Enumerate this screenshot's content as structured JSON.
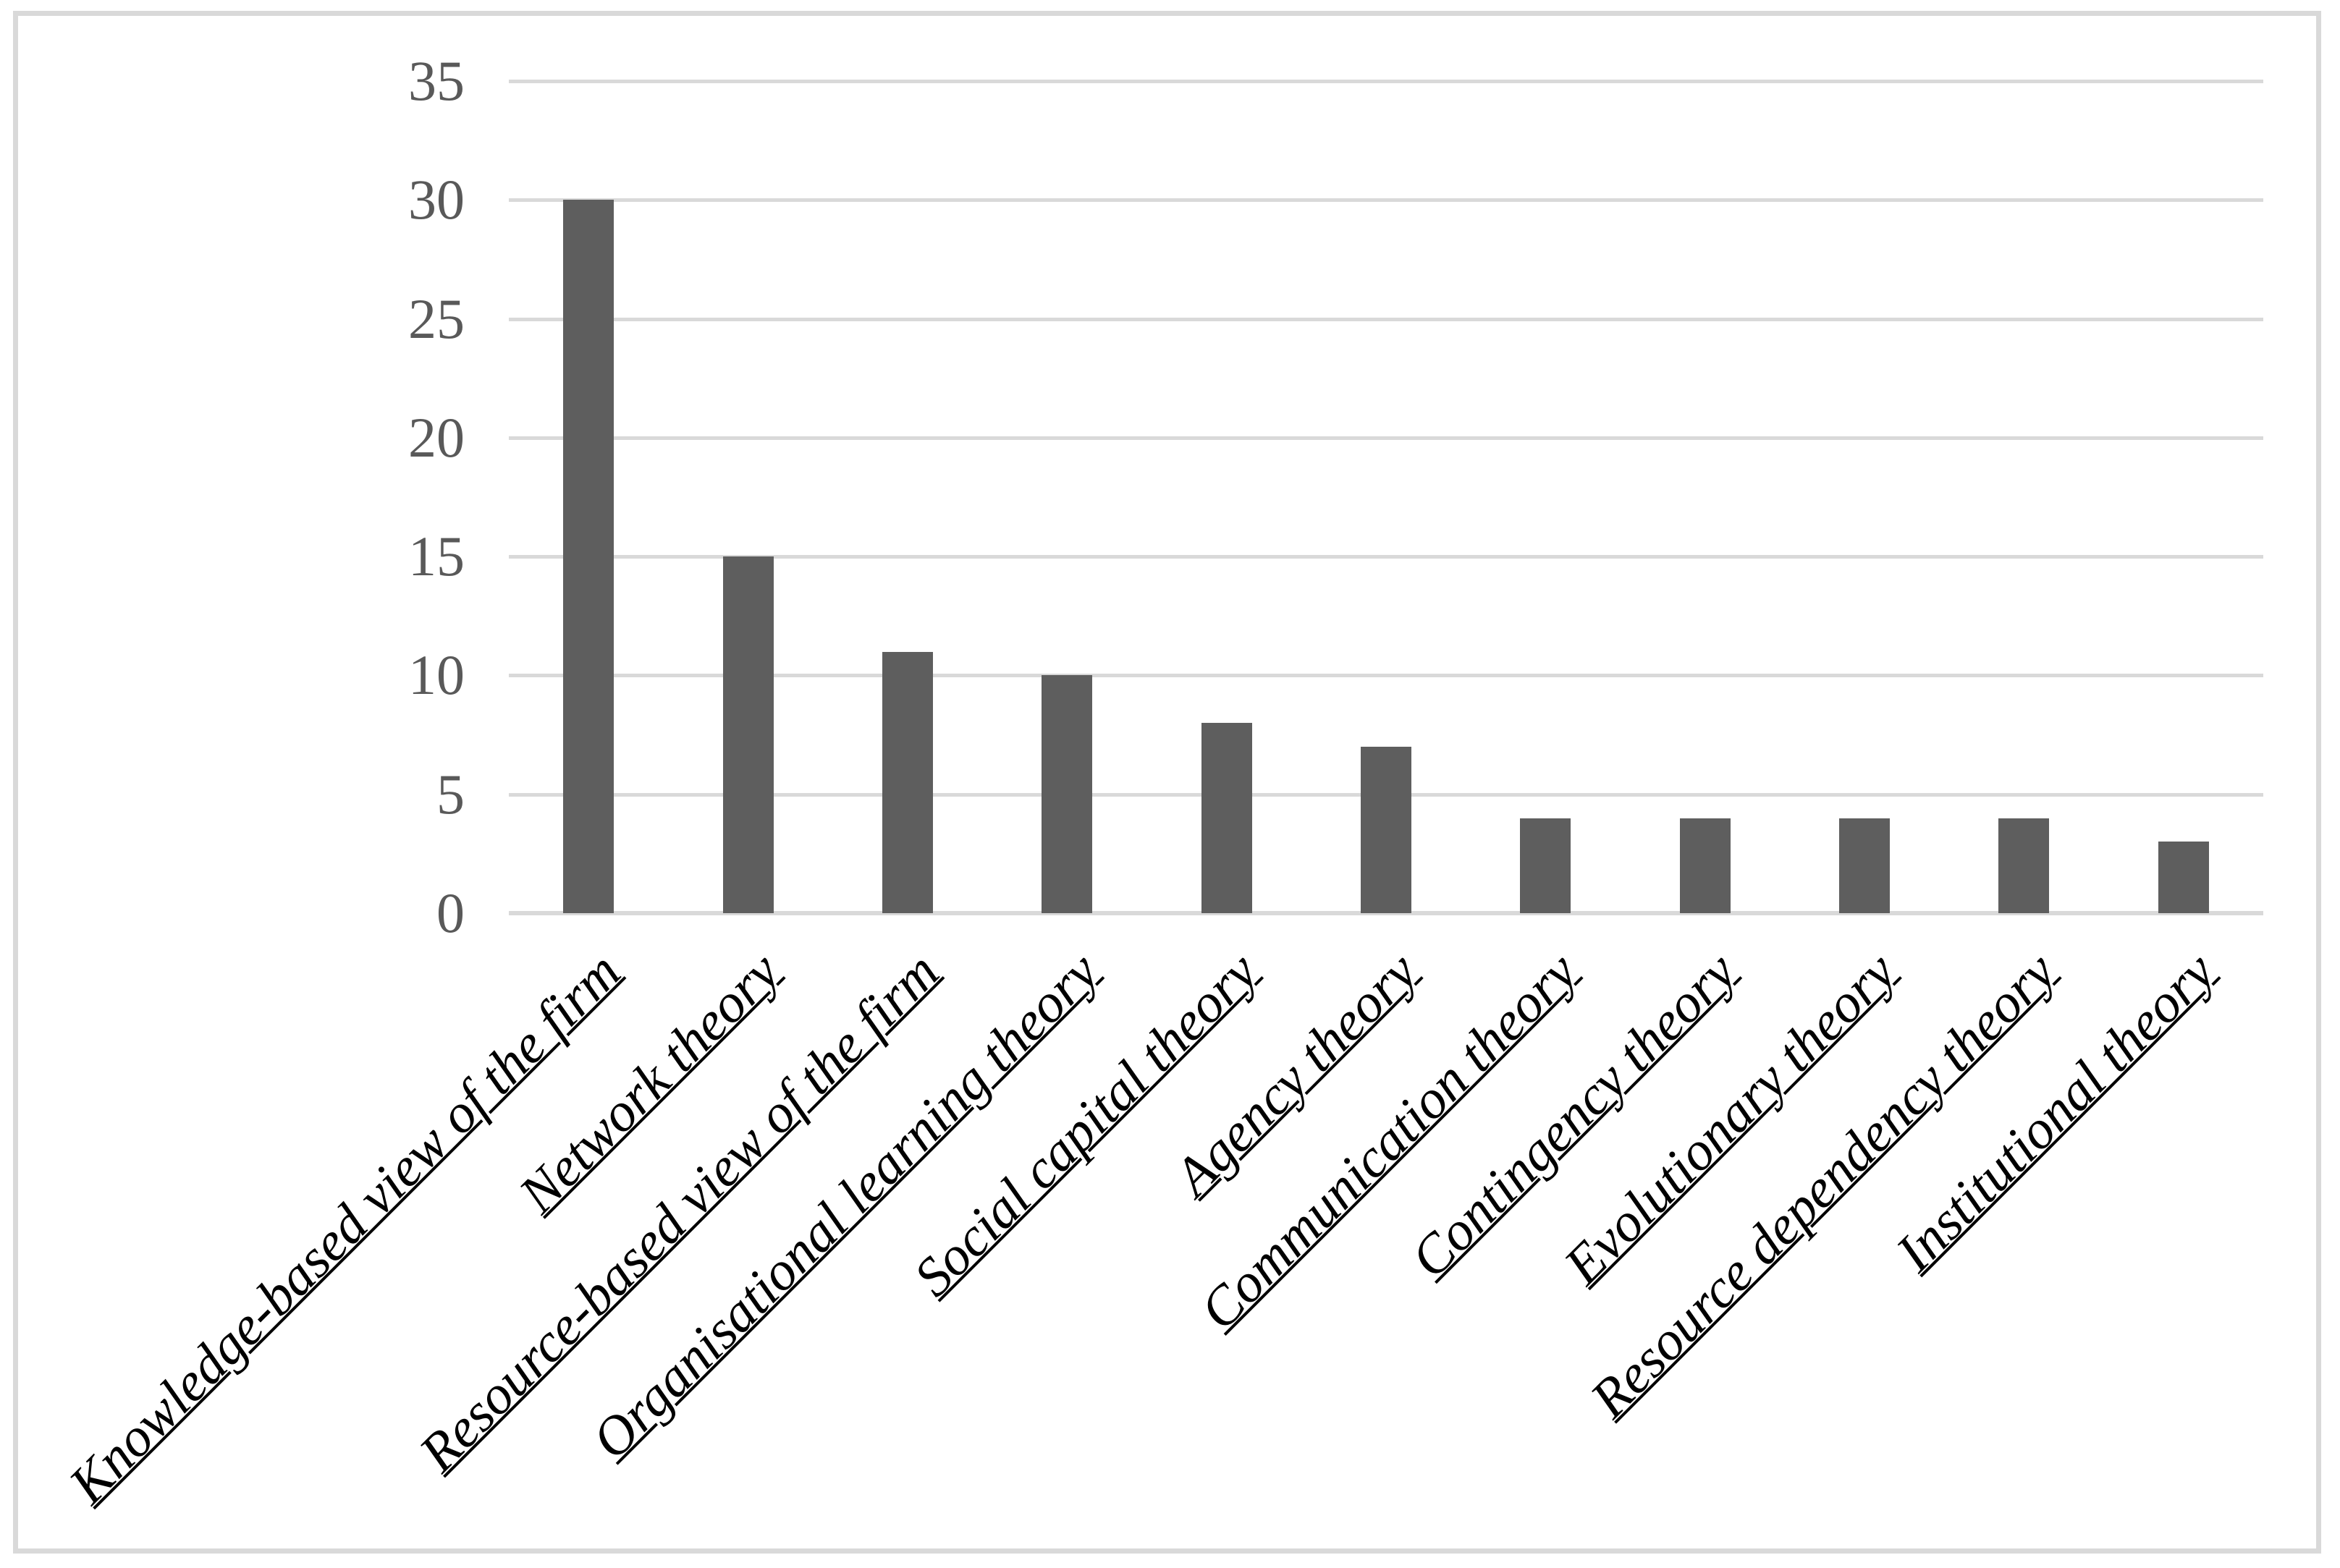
{
  "figure": {
    "background": "#FFFFFF",
    "border_color": "#D9D9D9"
  },
  "chart_data": {
    "type": "bar",
    "title": "",
    "xlabel": "",
    "ylabel": "",
    "categories": [
      "Knowledge-based view of the firm",
      "Network theory",
      "Resource-based view of the firm",
      "Organisational learning theory",
      "Social capital theory",
      "Agency theory",
      "Communication theory",
      "Contingency theory",
      "Evolutionary theory",
      "Resource dependency theory",
      "Institutional theory"
    ],
    "values": [
      30,
      15,
      11,
      10,
      8,
      7,
      4,
      4,
      4,
      4,
      3
    ],
    "ylim": [
      0,
      35
    ],
    "yticks": [
      0,
      5,
      10,
      15,
      20,
      25,
      30,
      35
    ],
    "grid": true,
    "legend": false,
    "bar_color": "#5E5E5E",
    "gridline_color": "#D9D9D9",
    "axis_line_color": "#D9D9D9",
    "tick_label_color": "#595959",
    "category_label_color": "#000000"
  }
}
